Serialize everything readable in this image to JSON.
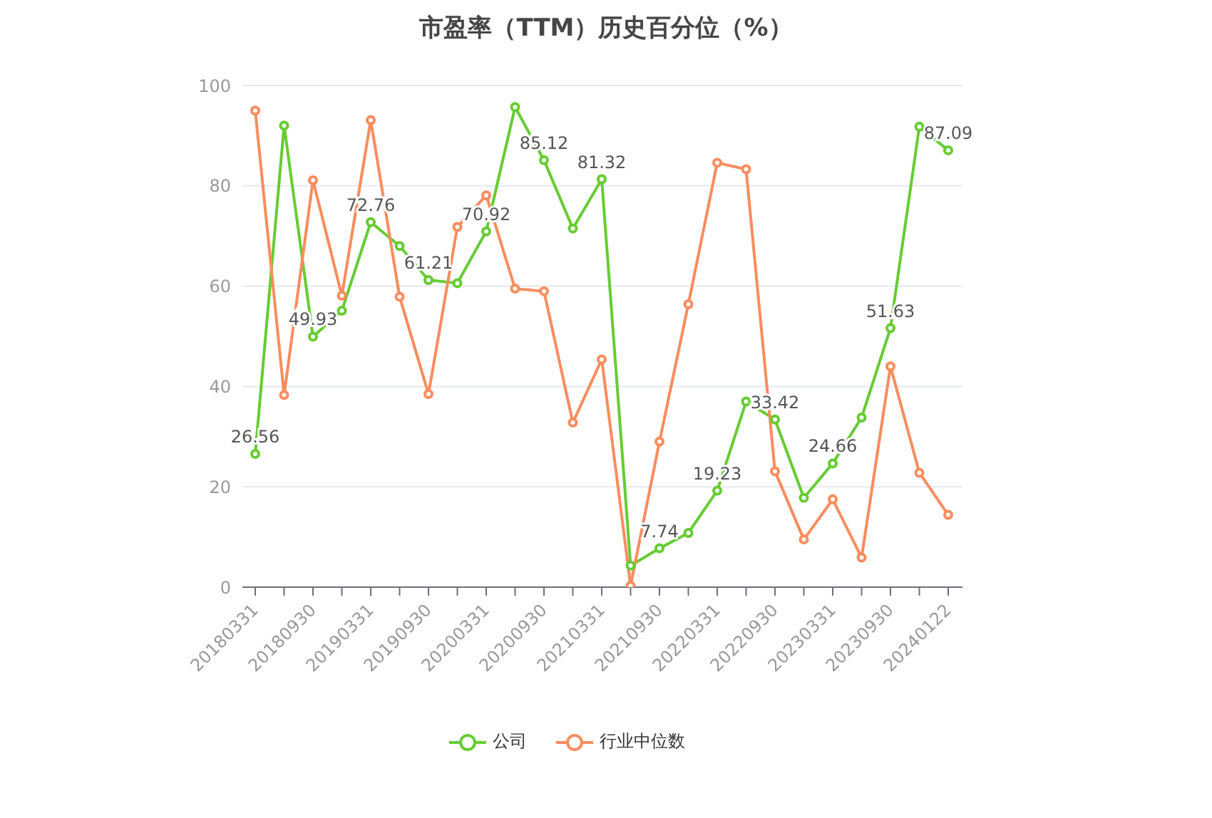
{
  "chart_data": {
    "type": "line",
    "title": "市盈率（TTM）历史百分位（%）",
    "categories": [
      "20180331",
      null,
      "20180930",
      null,
      "20190331",
      null,
      "20190930",
      null,
      "20200331",
      null,
      "20200930",
      null,
      "20210331",
      null,
      "20210930",
      null,
      "20220331",
      null,
      "20220930",
      null,
      "20230331",
      null,
      "20230930",
      null,
      "20240122"
    ],
    "series": [
      {
        "name": "公司",
        "color": "#66cc33",
        "values": [
          26.56,
          92.0,
          49.93,
          55.1,
          72.76,
          68.0,
          61.21,
          60.6,
          70.92,
          95.7,
          85.12,
          71.5,
          81.32,
          4.3,
          7.74,
          10.8,
          19.23,
          37.0,
          33.42,
          17.8,
          24.66,
          33.8,
          51.63,
          91.8,
          87.09
        ],
        "value_labels": [
          "26.56",
          null,
          "49.93",
          null,
          "72.76",
          null,
          "61.21",
          null,
          "70.92",
          null,
          "85.12",
          null,
          "81.32",
          null,
          "7.74",
          null,
          "19.23",
          null,
          "33.42",
          null,
          "24.66",
          null,
          "51.63",
          null,
          "87.09"
        ]
      },
      {
        "name": "行业中位数",
        "color": "#fa8c5e",
        "values": [
          95.0,
          38.3,
          81.1,
          58.1,
          93.1,
          57.9,
          38.5,
          71.8,
          78.1,
          59.5,
          59.0,
          32.8,
          45.4,
          0.3,
          29.0,
          56.4,
          84.6,
          83.3,
          23.1,
          9.5,
          17.5,
          5.9,
          44.0,
          22.8,
          14.4
        ]
      }
    ],
    "ylim": [
      0,
      100
    ],
    "yticks": [
      0,
      20,
      40,
      60,
      80,
      100
    ],
    "grid": "y",
    "legend": "bottom",
    "marker": "circle",
    "line_style": "solid"
  }
}
